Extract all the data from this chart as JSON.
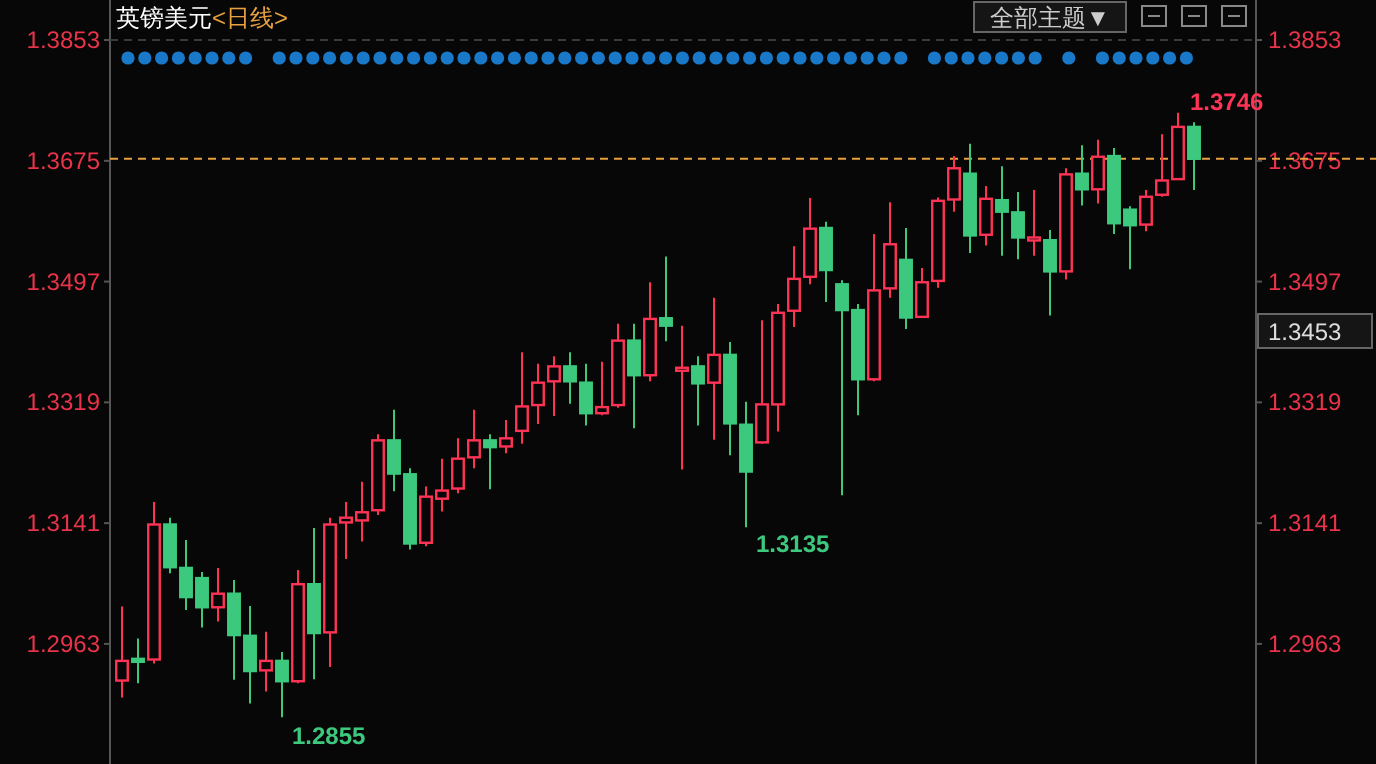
{
  "chart_data": {
    "type": "candlestick",
    "title": "英镑美元",
    "subtitle": "<日线>",
    "categories": [
      null,
      null,
      null,
      null,
      null,
      null,
      null,
      null,
      null,
      null,
      null,
      null,
      null,
      null,
      null,
      null,
      null,
      null,
      null,
      null,
      null,
      null,
      null,
      null,
      null,
      null,
      null,
      null,
      null,
      null,
      null,
      null,
      null,
      null,
      null,
      null,
      null,
      null,
      null,
      null,
      null,
      null,
      null,
      null,
      null,
      null,
      null,
      null,
      null,
      null,
      null,
      null,
      null,
      null,
      null,
      null,
      null,
      null,
      null,
      null,
      null,
      null,
      null,
      null,
      null,
      null,
      null,
      null
    ],
    "ohlc": [
      [
        1.2909,
        1.3018,
        1.2884,
        1.2938
      ],
      [
        1.2941,
        1.2971,
        1.2905,
        1.294
      ],
      [
        1.294,
        1.3172,
        1.2934,
        1.3139
      ],
      [
        1.3139,
        1.3149,
        1.3067,
        1.3076
      ],
      [
        1.3075,
        1.3116,
        1.3013,
        1.3032
      ],
      [
        1.306,
        1.3069,
        1.2987,
        1.3017
      ],
      [
        1.3017,
        1.3075,
        1.2996,
        1.3037
      ],
      [
        1.3037,
        1.3057,
        1.291,
        1.2976
      ],
      [
        1.2975,
        1.3019,
        1.2875,
        1.2923
      ],
      [
        1.2924,
        1.2981,
        1.2893,
        1.2938
      ],
      [
        1.2938,
        1.2951,
        1.2855,
        1.2908
      ],
      [
        1.2908,
        1.3072,
        1.2905,
        1.3051
      ],
      [
        1.3051,
        1.3134,
        1.2911,
        1.2979
      ],
      [
        1.298,
        1.3149,
        1.2929,
        1.3139
      ],
      [
        1.3142,
        1.3172,
        1.3088,
        1.3149
      ],
      [
        1.3145,
        1.3202,
        1.3114,
        1.3157
      ],
      [
        1.316,
        1.3272,
        1.3153,
        1.3263
      ],
      [
        1.3263,
        1.3308,
        1.3188,
        1.3214
      ],
      [
        1.3213,
        1.3222,
        1.3102,
        1.3111
      ],
      [
        1.3112,
        1.3195,
        1.3107,
        1.318
      ],
      [
        1.3177,
        1.3236,
        1.3158,
        1.3189
      ],
      [
        1.3192,
        1.3266,
        1.3185,
        1.3236
      ],
      [
        1.3238,
        1.3308,
        1.3222,
        1.3263
      ],
      [
        1.3263,
        1.3272,
        1.3191,
        1.3253
      ],
      [
        1.3254,
        1.3293,
        1.3244,
        1.3266
      ],
      [
        1.3277,
        1.3393,
        1.3258,
        1.3313
      ],
      [
        1.3315,
        1.3376,
        1.3287,
        1.3348
      ],
      [
        1.335,
        1.3387,
        1.3299,
        1.3372
      ],
      [
        1.3372,
        1.3393,
        1.3317,
        1.335
      ],
      [
        1.3348,
        1.3376,
        1.3285,
        1.3303
      ],
      [
        1.3303,
        1.3379,
        1.33,
        1.3312
      ],
      [
        1.3315,
        1.3435,
        1.3311,
        1.341
      ],
      [
        1.341,
        1.3435,
        1.3281,
        1.3359
      ],
      [
        1.3359,
        1.3496,
        1.335,
        1.3442
      ],
      [
        1.3443,
        1.3534,
        1.3409,
        1.3432
      ],
      [
        1.3368,
        1.3432,
        1.322,
        1.337
      ],
      [
        1.3372,
        1.3387,
        1.3285,
        1.3347
      ],
      [
        1.3348,
        1.3473,
        1.3264,
        1.3389
      ],
      [
        1.3389,
        1.3408,
        1.3241,
        1.3288
      ],
      [
        1.3286,
        1.332,
        1.3135,
        1.3217
      ],
      [
        1.326,
        1.344,
        1.3258,
        1.3316
      ],
      [
        1.3316,
        1.3464,
        1.3276,
        1.3451
      ],
      [
        1.3454,
        1.3549,
        1.343,
        1.3501
      ],
      [
        1.3504,
        1.362,
        1.3493,
        1.3575
      ],
      [
        1.3576,
        1.3585,
        1.3467,
        1.3514
      ],
      [
        1.3493,
        1.3499,
        1.3182,
        1.3455
      ],
      [
        1.3455,
        1.3464,
        1.33,
        1.3353
      ],
      [
        1.3353,
        1.3567,
        1.335,
        1.3484
      ],
      [
        1.3487,
        1.3614,
        1.3473,
        1.3552
      ],
      [
        1.3529,
        1.3576,
        1.3427,
        1.3444
      ],
      [
        1.3445,
        1.3517,
        1.3444,
        1.3496
      ],
      [
        1.3498,
        1.3621,
        1.3488,
        1.3616
      ],
      [
        1.3618,
        1.3682,
        1.36,
        1.3664
      ],
      [
        1.3656,
        1.37,
        1.3539,
        1.3565
      ],
      [
        1.3566,
        1.3638,
        1.355,
        1.3619
      ],
      [
        1.3617,
        1.3667,
        1.3535,
        1.36
      ],
      [
        1.3599,
        1.3629,
        1.353,
        1.3562
      ],
      [
        1.3561,
        1.3632,
        1.3535,
        1.3562
      ],
      [
        1.3558,
        1.3573,
        1.3447,
        1.3512
      ],
      [
        1.3512,
        1.3664,
        1.35,
        1.3655
      ],
      [
        1.3656,
        1.3698,
        1.3609,
        1.3633
      ],
      [
        1.3633,
        1.3706,
        1.3612,
        1.3681
      ],
      [
        1.3682,
        1.3694,
        1.3567,
        1.3583
      ],
      [
        1.3603,
        1.3608,
        1.3515,
        1.358
      ],
      [
        1.3581,
        1.3632,
        1.3571,
        1.3622
      ],
      [
        1.3625,
        1.3714,
        1.3622,
        1.3646
      ],
      [
        1.3648,
        1.3746,
        1.3647,
        1.3725
      ],
      [
        1.3725,
        1.3732,
        1.3632,
        1.3678
      ]
    ],
    "colors": [
      "#ff3355",
      "#3cc97e",
      "#ff3355",
      "#3cc97e",
      "#3cc97e",
      "#3cc97e",
      "#ff3355",
      "#3cc97e",
      "#3cc97e",
      "#ff3355",
      "#3cc97e",
      "#ff3355",
      "#3cc97e",
      "#ff3355",
      "#ff3355",
      "#ff3355",
      "#ff3355",
      "#3cc97e",
      "#3cc97e",
      "#ff3355",
      "#ff3355",
      "#ff3355",
      "#ff3355",
      "#3cc97e",
      "#ff3355",
      "#ff3355",
      "#ff3355",
      "#ff3355",
      "#3cc97e",
      "#3cc97e",
      "#ff3355",
      "#ff3355",
      "#3cc97e",
      "#ff3355",
      "#3cc97e",
      "#ff3355",
      "#3cc97e",
      "#ff3355",
      "#3cc97e",
      "#3cc97e",
      "#ff3355",
      "#ff3355",
      "#ff3355",
      "#ff3355",
      "#3cc97e",
      "#3cc97e",
      "#3cc97e",
      "#ff3355",
      "#ff3355",
      "#3cc97e",
      "#ff3355",
      "#ff3355",
      "#ff3355",
      "#3cc97e",
      "#ff3355",
      "#3cc97e",
      "#3cc97e",
      "#ff3355",
      "#3cc97e",
      "#ff3355",
      "#3cc97e",
      "#ff3355",
      "#3cc97e",
      "#3cc97e",
      "#ff3355",
      "#ff3355",
      "#ff3355",
      "#3cc97e"
    ],
    "ylim": [
      1.2786,
      1.3912
    ],
    "yticks": [
      1.3853,
      1.3675,
      1.3497,
      1.3319,
      1.3141,
      1.2963
    ],
    "y2lim": [
      1.2786,
      1.3912
    ],
    "y2ticks": [
      1.3853,
      1.3675,
      1.3497,
      1.3319,
      1.3141,
      1.2963
    ],
    "tick_labels": "y",
    "ref_lines": [
      {
        "axis": "y",
        "value": 1.3853,
        "color": "#3a3a3a",
        "line_style": "dashed"
      },
      {
        "axis": "y",
        "value": 1.3678,
        "color": "#e8a040",
        "line_style": "dashed"
      }
    ],
    "annotations": [
      "1.3746",
      "1.3135",
      "1.2855",
      "1.3453",
      "全部主题▼"
    ]
  }
}
